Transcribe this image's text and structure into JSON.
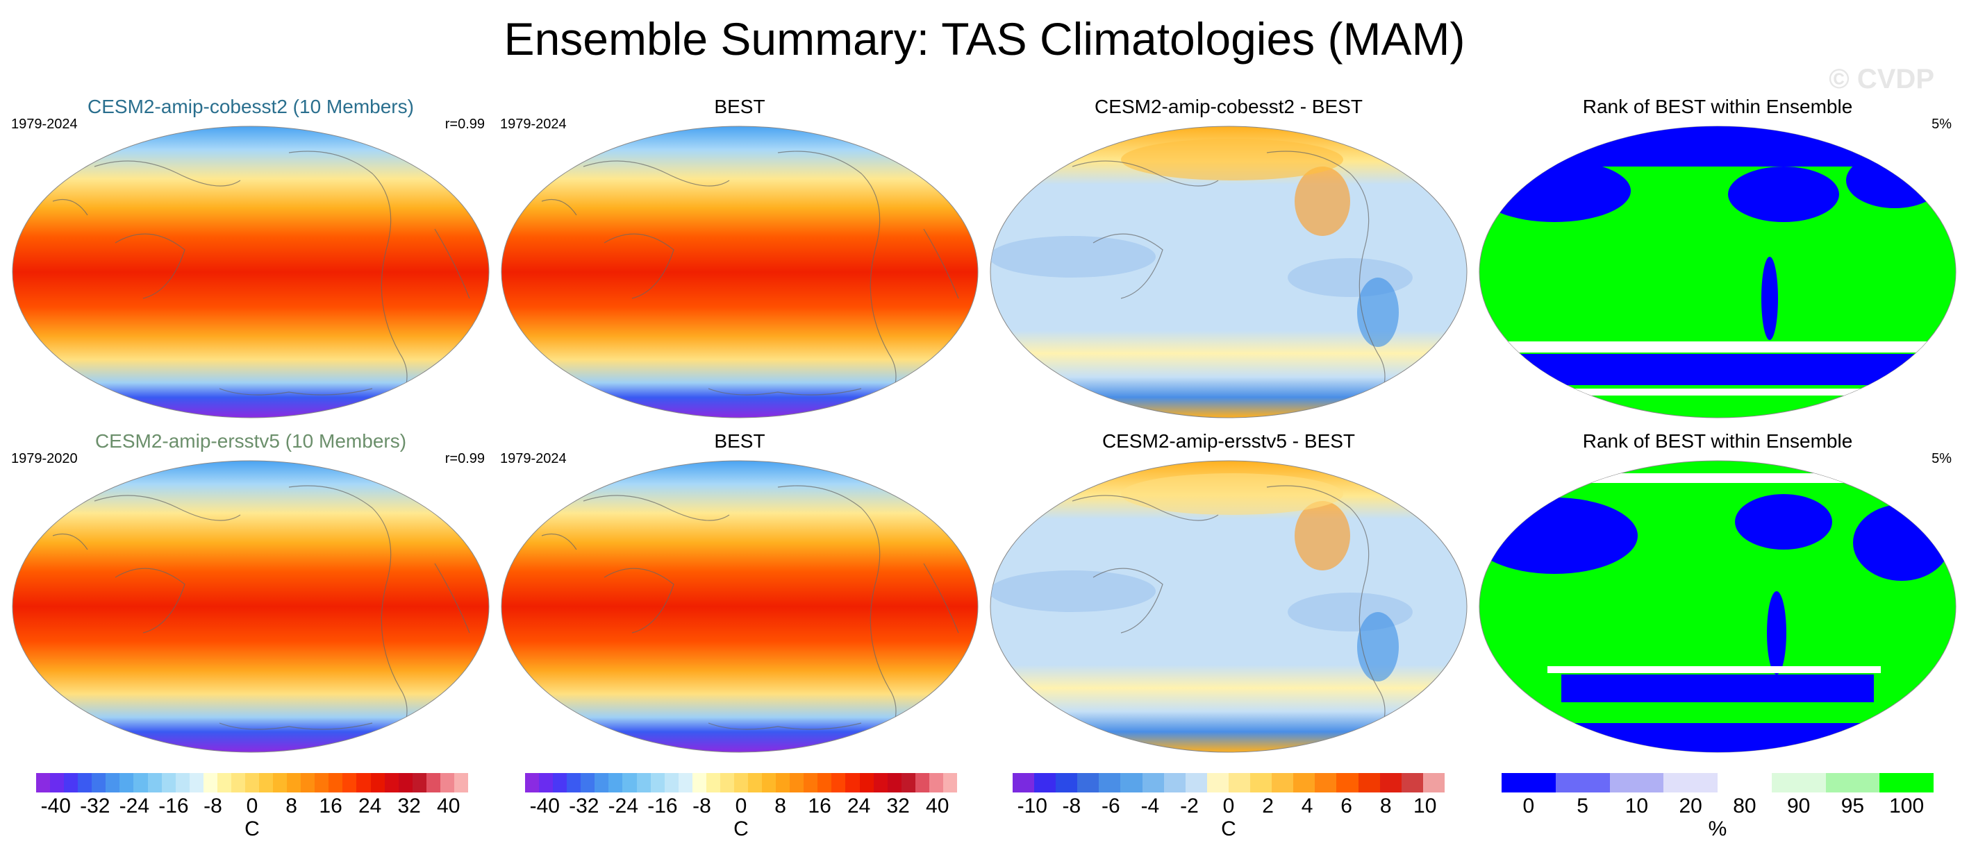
{
  "title": "Ensemble Summary: TAS Climatologies (MAM)",
  "watermark": "© CVDP",
  "rows": [
    {
      "model": {
        "title": "CESM2-amip-cobesst2 (10 Members)",
        "title_color": "#2a6f8e",
        "years": "1979-2024",
        "corr": "r=0.99"
      },
      "obs": {
        "title": "BEST",
        "years": "1979-2024"
      },
      "diff": {
        "title": "CESM2-amip-cobesst2 - BEST"
      },
      "rank": {
        "title": "Rank of BEST within Ensemble",
        "pct": "5%"
      }
    },
    {
      "model": {
        "title": "CESM2-amip-ersstv5 (10 Members)",
        "title_color": "#6b8f6b",
        "years": "1979-2020",
        "corr": "r=0.99"
      },
      "obs": {
        "title": "BEST",
        "years": "1979-2024"
      },
      "diff": {
        "title": "CESM2-amip-ersstv5 - BEST"
      },
      "rank": {
        "title": "Rank of BEST within Ensemble",
        "pct": "5%"
      }
    }
  ],
  "colorbars": [
    {
      "labels": [
        "-40",
        "-32",
        "-24",
        "-16",
        "-8",
        "0",
        "8",
        "16",
        "24",
        "32",
        "40"
      ],
      "unit": "C",
      "colors": [
        "#8a2be2",
        "#6a2cf0",
        "#4a38f6",
        "#3a5af2",
        "#3f77ee",
        "#4a95ee",
        "#56aaf0",
        "#6bbdf2",
        "#86ccf4",
        "#a4dbf6",
        "#c0e6f8",
        "#d8f0fa",
        "#ffffd4",
        "#fff3a0",
        "#ffe680",
        "#ffd860",
        "#ffc940",
        "#ffb828",
        "#ffa418",
        "#ff8f10",
        "#ff7808",
        "#ff6000",
        "#ff4600",
        "#f62a00",
        "#e81600",
        "#d80c10",
        "#c80818",
        "#c01828",
        "#e05060",
        "#f08890",
        "#f8b0b0"
      ]
    },
    {
      "labels": [
        "-40",
        "-32",
        "-24",
        "-16",
        "-8",
        "0",
        "8",
        "16",
        "24",
        "32",
        "40"
      ],
      "unit": "C",
      "colors": [
        "#8a2be2",
        "#6a2cf0",
        "#4a38f6",
        "#3a5af2",
        "#3f77ee",
        "#4a95ee",
        "#56aaf0",
        "#6bbdf2",
        "#86ccf4",
        "#a4dbf6",
        "#c0e6f8",
        "#d8f0fa",
        "#ffffd4",
        "#fff3a0",
        "#ffe680",
        "#ffd860",
        "#ffc940",
        "#ffb828",
        "#ffa418",
        "#ff8f10",
        "#ff7808",
        "#ff6000",
        "#ff4600",
        "#f62a00",
        "#e81600",
        "#d80c10",
        "#c80818",
        "#c01828",
        "#e05060",
        "#f08890",
        "#f8b0b0"
      ]
    },
    {
      "labels": [
        "-10",
        "-8",
        "-6",
        "-4",
        "-2",
        "0",
        "2",
        "4",
        "6",
        "8",
        "10"
      ],
      "unit": "C",
      "colors": [
        "#7a2ae0",
        "#3a2cf0",
        "#2a4ae8",
        "#3a6ee0",
        "#4a8ee6",
        "#5aa4ea",
        "#7ab8ee",
        "#a2ccf2",
        "#c6e0f6",
        "#fff6c0",
        "#ffe890",
        "#ffd860",
        "#ffc040",
        "#ffa420",
        "#ff8410",
        "#ff6000",
        "#f23a00",
        "#e02010",
        "#d04040",
        "#f0a0a0"
      ]
    },
    {
      "labels": [
        "0",
        "5",
        "10",
        "20",
        "80",
        "90",
        "95",
        "100"
      ],
      "unit": "%",
      "colors": [
        "#0000ff",
        "#6a6af8",
        "#b0b0f4",
        "#e0e0fa",
        "#ffffff",
        "#dcfadc",
        "#aaf6aa",
        "#00ff00"
      ]
    }
  ]
}
